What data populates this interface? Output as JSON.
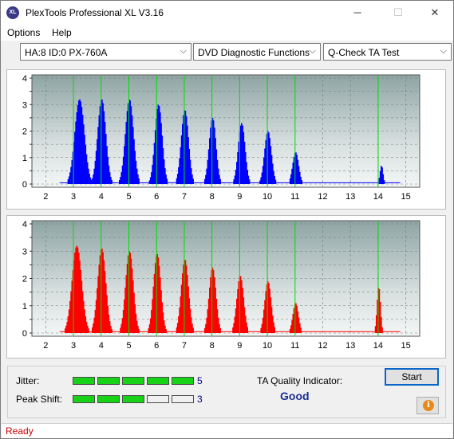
{
  "window": {
    "title": "PlexTools Professional XL V3.16",
    "icon_text": "XL",
    "minimize_glyph": "─",
    "maximize_glyph": "☐",
    "close_glyph": "✕"
  },
  "menu": [
    "Options",
    "Help"
  ],
  "toolbar": {
    "drive": "HA:8 ID:0  PX-760A",
    "function": "DVD Diagnostic Functions",
    "test": "Q-Check TA Test",
    "dropdown_glyph": "⌵"
  },
  "chart_data": [
    {
      "type": "area",
      "color": "#0000ff",
      "x_ticks": [
        "2",
        "3",
        "4",
        "5",
        "6",
        "7",
        "8",
        "9",
        "10",
        "11",
        "12",
        "13",
        "14",
        "15"
      ],
      "y_ticks": [
        "0",
        "0.5",
        "1",
        "1.5",
        "2",
        "2.5",
        "3",
        "3.5",
        "4"
      ],
      "ylim": [
        0,
        4
      ],
      "xlim": [
        1.5,
        15.5
      ],
      "green_markers": [
        3,
        4,
        5,
        6,
        7,
        8,
        9,
        10,
        11,
        14
      ],
      "peaks": [
        {
          "center": 3.2,
          "height": 3.2,
          "width": 0.45
        },
        {
          "center": 4.0,
          "height": 3.2,
          "width": 0.38
        },
        {
          "center": 5.0,
          "height": 3.2,
          "width": 0.38
        },
        {
          "center": 6.05,
          "height": 3.0,
          "width": 0.34
        },
        {
          "center": 7.0,
          "height": 2.8,
          "width": 0.34
        },
        {
          "center": 8.0,
          "height": 2.5,
          "width": 0.32
        },
        {
          "center": 9.05,
          "height": 2.3,
          "width": 0.32
        },
        {
          "center": 10.0,
          "height": 2.0,
          "width": 0.32
        },
        {
          "center": 11.0,
          "height": 1.2,
          "width": 0.28
        },
        {
          "center": 14.1,
          "height": 0.7,
          "width": 0.14
        }
      ]
    },
    {
      "type": "area",
      "color": "#ff0000",
      "x_ticks": [
        "2",
        "3",
        "4",
        "5",
        "6",
        "7",
        "8",
        "9",
        "10",
        "11",
        "12",
        "13",
        "14",
        "15"
      ],
      "y_ticks": [
        "0",
        "0.5",
        "1",
        "1.5",
        "2",
        "2.5",
        "3",
        "3.5",
        "4"
      ],
      "ylim": [
        0,
        4
      ],
      "xlim": [
        1.5,
        15.5
      ],
      "green_markers": [
        3,
        4,
        5,
        6,
        7,
        8,
        9,
        10,
        11,
        14
      ],
      "peaks": [
        {
          "center": 3.1,
          "height": 3.2,
          "width": 0.45
        },
        {
          "center": 4.0,
          "height": 3.1,
          "width": 0.38
        },
        {
          "center": 5.0,
          "height": 3.0,
          "width": 0.36
        },
        {
          "center": 6.0,
          "height": 2.9,
          "width": 0.34
        },
        {
          "center": 7.0,
          "height": 2.7,
          "width": 0.34
        },
        {
          "center": 8.0,
          "height": 2.4,
          "width": 0.32
        },
        {
          "center": 9.0,
          "height": 2.1,
          "width": 0.32
        },
        {
          "center": 10.0,
          "height": 1.9,
          "width": 0.3
        },
        {
          "center": 11.0,
          "height": 1.1,
          "width": 0.26
        },
        {
          "center": 14.0,
          "height": 1.7,
          "width": 0.16
        }
      ]
    }
  ],
  "quality": {
    "jitter_label": "Jitter:",
    "jitter_score": "5",
    "jitter_fill": 5,
    "peak_label": "Peak Shift:",
    "peak_score": "3",
    "peak_fill": 3,
    "segments_total": 5,
    "ta_label": "TA Quality Indicator:",
    "ta_value": "Good",
    "bar_color": "#18d218"
  },
  "buttons": {
    "start": "Start",
    "info_glyph": "i"
  },
  "status": "Ready"
}
